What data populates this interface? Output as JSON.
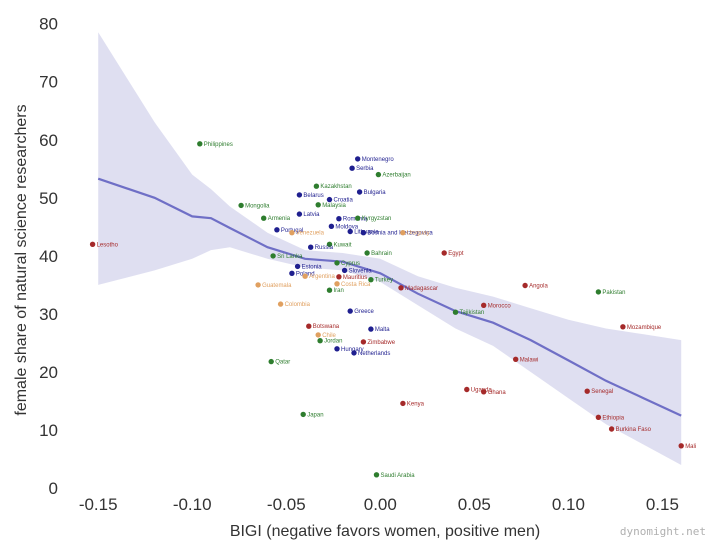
{
  "chart_data": {
    "type": "scatter",
    "title": "",
    "xlabel": "BIGI (negative favors women, positive men)",
    "ylabel": "female share of natural science researchers",
    "xlim": [
      -0.165,
      0.17
    ],
    "ylim": [
      -1,
      82
    ],
    "xticks": [
      -0.15,
      -0.1,
      -0.05,
      0.0,
      0.05,
      0.1,
      0.15
    ],
    "xtick_labels": [
      "-0.15",
      "-0.10",
      "-0.05",
      "0.00",
      "0.05",
      "0.10",
      "0.15"
    ],
    "yticks": [
      0,
      10,
      20,
      30,
      40,
      50,
      60,
      70,
      80
    ],
    "ytick_labels": [
      "0",
      "10",
      "20",
      "30",
      "40",
      "50",
      "60",
      "70",
      "80"
    ],
    "grid": false,
    "watermark": "dynomight.net",
    "colors": {
      "navy": "#1f1f8f",
      "green": "#2e7d2e",
      "orange": "#e0a060",
      "red": "#a52a2a",
      "trend": "#6f6fc6",
      "band": "#d9d9ef"
    },
    "trend": [
      {
        "x": -0.15,
        "y": 53.3,
        "lo": 35.0,
        "hi": 78.5
      },
      {
        "x": -0.12,
        "y": 50.0,
        "lo": 37.5,
        "hi": 63.0
      },
      {
        "x": -0.1,
        "y": 46.8,
        "lo": 39.5,
        "hi": 54.0
      },
      {
        "x": -0.09,
        "y": 46.5,
        "lo": 41.0,
        "hi": 51.5
      },
      {
        "x": -0.08,
        "y": 44.8,
        "lo": 41.5,
        "hi": 48.5
      },
      {
        "x": -0.06,
        "y": 41.5,
        "lo": 39.5,
        "hi": 44.0
      },
      {
        "x": -0.04,
        "y": 39.5,
        "lo": 38.0,
        "hi": 41.0
      },
      {
        "x": -0.02,
        "y": 39.0,
        "lo": 37.5,
        "hi": 40.5
      },
      {
        "x": 0.0,
        "y": 37.0,
        "lo": 35.5,
        "hi": 39.5
      },
      {
        "x": 0.02,
        "y": 33.5,
        "lo": 31.5,
        "hi": 36.5
      },
      {
        "x": 0.04,
        "y": 30.5,
        "lo": 27.5,
        "hi": 34.5
      },
      {
        "x": 0.06,
        "y": 28.5,
        "lo": 24.5,
        "hi": 33.0
      },
      {
        "x": 0.08,
        "y": 25.5,
        "lo": 20.0,
        "hi": 31.0
      },
      {
        "x": 0.1,
        "y": 22.0,
        "lo": 15.5,
        "hi": 29.0
      },
      {
        "x": 0.12,
        "y": 18.5,
        "lo": 11.0,
        "hi": 27.5
      },
      {
        "x": 0.14,
        "y": 15.5,
        "lo": 7.5,
        "hi": 26.5
      },
      {
        "x": 0.16,
        "y": 12.5,
        "lo": 4.0,
        "hi": 25.5
      }
    ],
    "points": [
      {
        "label": "Philippines",
        "x": -0.096,
        "y": 59.3,
        "color": "green"
      },
      {
        "label": "Lesotho",
        "x": -0.153,
        "y": 42.0,
        "color": "red"
      },
      {
        "label": "Mongolia",
        "x": -0.074,
        "y": 48.7,
        "color": "green"
      },
      {
        "label": "Armenia",
        "x": -0.062,
        "y": 46.5,
        "color": "green"
      },
      {
        "label": "Portugal",
        "x": -0.055,
        "y": 44.5,
        "color": "navy"
      },
      {
        "label": "Venezuela",
        "x": -0.047,
        "y": 44.0,
        "color": "orange"
      },
      {
        "label": "Latvia",
        "x": -0.043,
        "y": 47.2,
        "color": "navy"
      },
      {
        "label": "Belarus",
        "x": -0.043,
        "y": 50.5,
        "color": "navy"
      },
      {
        "label": "Kazakhstan",
        "x": -0.034,
        "y": 52.0,
        "color": "green"
      },
      {
        "label": "Croatia",
        "x": -0.027,
        "y": 49.7,
        "color": "navy"
      },
      {
        "label": "Malaysia",
        "x": -0.033,
        "y": 48.8,
        "color": "green"
      },
      {
        "label": "Montenegro",
        "x": -0.012,
        "y": 56.7,
        "color": "navy"
      },
      {
        "label": "Serbia",
        "x": -0.015,
        "y": 55.1,
        "color": "navy"
      },
      {
        "label": "Azerbaijan",
        "x": -0.001,
        "y": 54.0,
        "color": "green"
      },
      {
        "label": "Bulgaria",
        "x": -0.011,
        "y": 51.0,
        "color": "navy"
      },
      {
        "label": "Romania",
        "x": -0.022,
        "y": 46.4,
        "color": "navy"
      },
      {
        "label": "Kyrgyzstan",
        "x": -0.012,
        "y": 46.5,
        "color": "green"
      },
      {
        "label": "Moldova",
        "x": -0.026,
        "y": 45.1,
        "color": "navy"
      },
      {
        "label": "Lithuania",
        "x": -0.016,
        "y": 44.2,
        "color": "navy"
      },
      {
        "label": "Bosnia and Herzegovina",
        "x": -0.009,
        "y": 44.0,
        "color": "navy"
      },
      {
        "label": "Uruguay",
        "x": 0.012,
        "y": 44.0,
        "color": "orange"
      },
      {
        "label": "Kuwait",
        "x": -0.027,
        "y": 42.0,
        "color": "green"
      },
      {
        "label": "Russia",
        "x": -0.037,
        "y": 41.5,
        "color": "navy"
      },
      {
        "label": "Bahrain",
        "x": -0.007,
        "y": 40.5,
        "color": "green"
      },
      {
        "label": "Egypt",
        "x": 0.034,
        "y": 40.5,
        "color": "red"
      },
      {
        "label": "Sri Lanka",
        "x": -0.057,
        "y": 40.0,
        "color": "green"
      },
      {
        "label": "Cyprus",
        "x": -0.023,
        "y": 38.8,
        "color": "green"
      },
      {
        "label": "Estonia",
        "x": -0.044,
        "y": 38.2,
        "color": "navy"
      },
      {
        "label": "Slovenia",
        "x": -0.019,
        "y": 37.5,
        "color": "navy"
      },
      {
        "label": "Poland",
        "x": -0.047,
        "y": 37.0,
        "color": "navy"
      },
      {
        "label": "Argentina",
        "x": -0.04,
        "y": 36.5,
        "color": "orange"
      },
      {
        "label": "Mauritius",
        "x": -0.022,
        "y": 36.4,
        "color": "red"
      },
      {
        "label": "Turkey",
        "x": -0.005,
        "y": 35.9,
        "color": "green"
      },
      {
        "label": "Costa Rica",
        "x": -0.023,
        "y": 35.2,
        "color": "orange"
      },
      {
        "label": "Guatemala",
        "x": -0.065,
        "y": 35.0,
        "color": "orange"
      },
      {
        "label": "Iran",
        "x": -0.027,
        "y": 34.1,
        "color": "green"
      },
      {
        "label": "Madagascar",
        "x": 0.011,
        "y": 34.5,
        "color": "red"
      },
      {
        "label": "Angola",
        "x": 0.077,
        "y": 34.9,
        "color": "red"
      },
      {
        "label": "Pakistan",
        "x": 0.116,
        "y": 33.8,
        "color": "green"
      },
      {
        "label": "Colombia",
        "x": -0.053,
        "y": 31.7,
        "color": "orange"
      },
      {
        "label": "Morocco",
        "x": 0.055,
        "y": 31.5,
        "color": "red"
      },
      {
        "label": "Greece",
        "x": -0.016,
        "y": 30.5,
        "color": "navy"
      },
      {
        "label": "Tajikistan",
        "x": 0.04,
        "y": 30.3,
        "color": "green"
      },
      {
        "label": "Botswana",
        "x": -0.038,
        "y": 27.9,
        "color": "red"
      },
      {
        "label": "Malta",
        "x": -0.005,
        "y": 27.4,
        "color": "navy"
      },
      {
        "label": "Mozambique",
        "x": 0.129,
        "y": 27.8,
        "color": "red"
      },
      {
        "label": "Chile",
        "x": -0.033,
        "y": 26.4,
        "color": "orange"
      },
      {
        "label": "Jordan",
        "x": -0.032,
        "y": 25.4,
        "color": "green"
      },
      {
        "label": "Zimbabwe",
        "x": -0.009,
        "y": 25.2,
        "color": "red"
      },
      {
        "label": "Hungary",
        "x": -0.023,
        "y": 24.0,
        "color": "navy"
      },
      {
        "label": "Netherlands",
        "x": -0.014,
        "y": 23.3,
        "color": "navy"
      },
      {
        "label": "Malawi",
        "x": 0.072,
        "y": 22.2,
        "color": "red"
      },
      {
        "label": "Qatar",
        "x": -0.058,
        "y": 21.8,
        "color": "green"
      },
      {
        "label": "Uganda",
        "x": 0.046,
        "y": 17.0,
        "color": "red"
      },
      {
        "label": "Ghana",
        "x": 0.055,
        "y": 16.6,
        "color": "red"
      },
      {
        "label": "Senegal",
        "x": 0.11,
        "y": 16.7,
        "color": "red"
      },
      {
        "label": "Kenya",
        "x": 0.012,
        "y": 14.6,
        "color": "red"
      },
      {
        "label": "Japan",
        "x": -0.041,
        "y": 12.7,
        "color": "green"
      },
      {
        "label": "Ethiopia",
        "x": 0.116,
        "y": 12.2,
        "color": "red"
      },
      {
        "label": "Burkina Faso",
        "x": 0.123,
        "y": 10.2,
        "color": "red"
      },
      {
        "label": "Mali",
        "x": 0.16,
        "y": 7.3,
        "color": "red"
      },
      {
        "label": "Saudi Arabia",
        "x": -0.002,
        "y": 2.3,
        "color": "green"
      }
    ]
  }
}
